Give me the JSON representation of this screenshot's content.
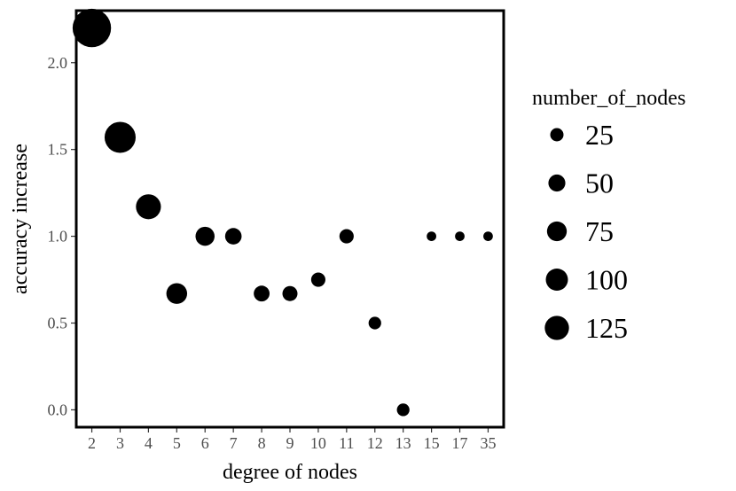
{
  "chart_data": {
    "type": "scatter",
    "xlabel": "degree of nodes",
    "ylabel": "accuracy increase",
    "x_axis_type": "categorical",
    "categories": [
      "2",
      "3",
      "4",
      "5",
      "6",
      "7",
      "8",
      "9",
      "10",
      "11",
      "12",
      "13",
      "15",
      "17",
      "35"
    ],
    "ylim": [
      -0.1,
      2.3
    ],
    "yticks": [
      0.0,
      0.5,
      1.0,
      1.5,
      2.0
    ],
    "ytick_labels": [
      "0.0",
      "0.5",
      "1.0",
      "1.5",
      "2.0"
    ],
    "grid": false,
    "points": [
      {
        "x": "2",
        "y": 2.2,
        "size": 130
      },
      {
        "x": "3",
        "y": 1.57,
        "size": 85
      },
      {
        "x": "4",
        "y": 1.17,
        "size": 55
      },
      {
        "x": "5",
        "y": 0.67,
        "size": 38
      },
      {
        "x": "6",
        "y": 1.0,
        "size": 32
      },
      {
        "x": "7",
        "y": 1.0,
        "size": 24
      },
      {
        "x": "8",
        "y": 0.67,
        "size": 22
      },
      {
        "x": "9",
        "y": 0.67,
        "size": 20
      },
      {
        "x": "10",
        "y": 0.75,
        "size": 18
      },
      {
        "x": "11",
        "y": 1.0,
        "size": 18
      },
      {
        "x": "12",
        "y": 0.5,
        "size": 14
      },
      {
        "x": "13",
        "y": 0.0,
        "size": 14
      },
      {
        "x": "15",
        "y": 1.0,
        "size": 8
      },
      {
        "x": "17",
        "y": 1.0,
        "size": 8
      },
      {
        "x": "35",
        "y": 1.0,
        "size": 8
      }
    ],
    "legend": {
      "title": "number_of_nodes",
      "placement": "right",
      "entries": [
        {
          "label": "25",
          "size": 25
        },
        {
          "label": "50",
          "size": 50
        },
        {
          "label": "75",
          "size": 75
        },
        {
          "label": "100",
          "size": 100
        },
        {
          "label": "125",
          "size": 125
        }
      ]
    },
    "colors": {
      "point": "#000000",
      "panel_border": "#000000",
      "tick_text": "#4d4d4d"
    }
  }
}
